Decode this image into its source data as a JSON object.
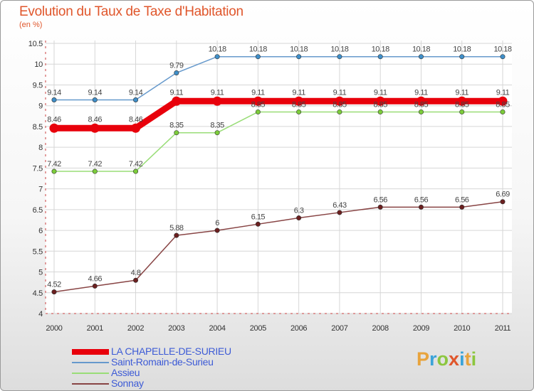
{
  "title": "Evolution du Taux de Taxe d'Habitation",
  "unit_label": "(en %)",
  "logo": {
    "text": "Proxiti",
    "letters": [
      "P",
      "r",
      "o",
      "x",
      "i",
      "t",
      "i"
    ],
    "colors": [
      "#e8a33c",
      "#3aa3d8",
      "#8cc63f",
      "#e0562b",
      "#3aa3d8",
      "#e8a33c",
      "#8cc63f"
    ]
  },
  "chart_data": {
    "type": "line",
    "title": "Evolution du Taux de Taxe d'Habitation",
    "ylabel": "(en %)",
    "categories": [
      "2000",
      "2001",
      "2002",
      "2003",
      "2004",
      "2005",
      "2006",
      "2007",
      "2008",
      "2009",
      "2010",
      "2011"
    ],
    "ylim": [
      4,
      10.5
    ],
    "yticks": [
      4,
      4.5,
      5,
      5.5,
      6,
      6.5,
      7,
      7.5,
      8,
      8.5,
      9,
      9.5,
      10,
      10.5
    ],
    "ytick_labels": [
      "4",
      "4.5",
      "5",
      "5.5",
      "6",
      "6.5",
      "7",
      "7.5",
      "8",
      "8.5",
      "9",
      "9.5",
      "10",
      "10.5"
    ],
    "series": [
      {
        "name": "LA CHAPELLE-DE-SURIEU",
        "color": "#e8000b",
        "bold": true,
        "values": [
          8.46,
          8.46,
          8.46,
          9.11,
          9.11,
          9.11,
          9.11,
          9.11,
          9.11,
          9.11,
          9.11,
          9.11
        ],
        "labels": [
          "8.46",
          "8.46",
          "8.46",
          "9.11",
          "9.11",
          "9.11",
          "9.11",
          "9.11",
          "9.11",
          "9.11",
          "9.11",
          "9.11"
        ]
      },
      {
        "name": "Saint-Romain-de-Surieu",
        "color": "#6699cc",
        "point_color": "#3f8fc9",
        "values": [
          9.14,
          9.14,
          9.14,
          9.79,
          10.18,
          10.18,
          10.18,
          10.18,
          10.18,
          10.18,
          10.18,
          10.18
        ],
        "labels": [
          "9.14",
          "9.14",
          "9.14",
          "9.79",
          "10.18",
          "10.18",
          "10.18",
          "10.18",
          "10.18",
          "10.18",
          "10.18",
          "10.18"
        ]
      },
      {
        "name": "Assieu",
        "color": "#99dd77",
        "point_color": "#7ccc3a",
        "values": [
          7.42,
          7.42,
          7.42,
          8.35,
          8.35,
          8.85,
          8.85,
          8.85,
          8.85,
          8.85,
          8.85,
          8.85
        ],
        "labels": [
          "7.42",
          "7.42",
          "7.42",
          "8.35",
          "8.35",
          "8.85",
          "8.85",
          "8.85",
          "8.85",
          "8.85",
          "8.85",
          "8.85"
        ]
      },
      {
        "name": "Sonnay",
        "color": "#884444",
        "point_color": "#6b1f1f",
        "values": [
          4.52,
          4.66,
          4.8,
          5.88,
          6,
          6.15,
          6.3,
          6.43,
          6.56,
          6.56,
          6.56,
          6.69
        ],
        "labels": [
          "4.52",
          "4.66",
          "4.8",
          "5.88",
          "6",
          "6.15",
          "6.3",
          "6.43",
          "6.56",
          "6.56",
          "6.56",
          "6.69"
        ]
      }
    ]
  }
}
